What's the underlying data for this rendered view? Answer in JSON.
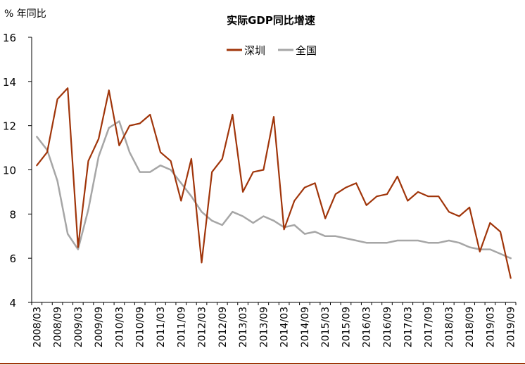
{
  "chart_data": {
    "type": "line",
    "title": "实际GDP同比增速",
    "ylabel": "% 年同比",
    "xlabel": "",
    "ylim": [
      4,
      16
    ],
    "yticks": [
      4,
      6,
      8,
      10,
      12,
      14,
      16
    ],
    "grid": false,
    "legend_position": "top-center",
    "x_tick_labels": [
      "2008/03",
      "2008/09",
      "2009/03",
      "2009/09",
      "2010/03",
      "2010/09",
      "2011/03",
      "2011/09",
      "2012/03",
      "2012/09",
      "2013/03",
      "2013/09",
      "2014/03",
      "2014/09",
      "2015/03",
      "2015/09",
      "2016/03",
      "2016/09",
      "2017/03",
      "2017/09",
      "2018/03",
      "2018/09",
      "2019/03",
      "2019/09"
    ],
    "x": [
      "2008/03",
      "2008/06",
      "2008/09",
      "2008/12",
      "2009/03",
      "2009/06",
      "2009/09",
      "2009/12",
      "2010/03",
      "2010/06",
      "2010/09",
      "2010/12",
      "2011/03",
      "2011/06",
      "2011/09",
      "2011/12",
      "2012/03",
      "2012/06",
      "2012/09",
      "2012/12",
      "2013/03",
      "2013/06",
      "2013/09",
      "2013/12",
      "2014/03",
      "2014/06",
      "2014/09",
      "2014/12",
      "2015/03",
      "2015/06",
      "2015/09",
      "2015/12",
      "2016/03",
      "2016/06",
      "2016/09",
      "2016/12",
      "2017/03",
      "2017/06",
      "2017/09",
      "2017/12",
      "2018/03",
      "2018/06",
      "2018/09",
      "2018/12",
      "2019/03",
      "2019/06",
      "2019/09"
    ],
    "series": [
      {
        "name": "深圳",
        "color": "#a0350a",
        "values": [
          10.2,
          10.8,
          13.2,
          13.7,
          6.5,
          10.4,
          11.4,
          13.6,
          11.1,
          12.0,
          12.1,
          12.5,
          10.8,
          10.4,
          8.6,
          10.5,
          5.8,
          9.9,
          10.5,
          12.5,
          9.0,
          9.9,
          10.0,
          12.4,
          7.3,
          8.6,
          9.2,
          9.4,
          7.8,
          8.9,
          9.2,
          9.4,
          8.4,
          8.8,
          8.9,
          9.7,
          8.6,
          9.0,
          8.8,
          8.8,
          8.1,
          7.9,
          8.3,
          6.3,
          7.6,
          7.2,
          5.1
        ]
      },
      {
        "name": "全国",
        "color": "#a6a6a6",
        "values": [
          11.5,
          10.9,
          9.5,
          7.1,
          6.4,
          8.2,
          10.6,
          11.9,
          12.2,
          10.8,
          9.9,
          9.9,
          10.2,
          10.0,
          9.4,
          8.8,
          8.1,
          7.7,
          7.5,
          8.1,
          7.9,
          7.6,
          7.9,
          7.7,
          7.4,
          7.5,
          7.1,
          7.2,
          7.0,
          7.0,
          6.9,
          6.8,
          6.7,
          6.7,
          6.7,
          6.8,
          6.8,
          6.8,
          6.7,
          6.7,
          6.8,
          6.7,
          6.5,
          6.4,
          6.4,
          6.2,
          6.0
        ]
      }
    ]
  }
}
